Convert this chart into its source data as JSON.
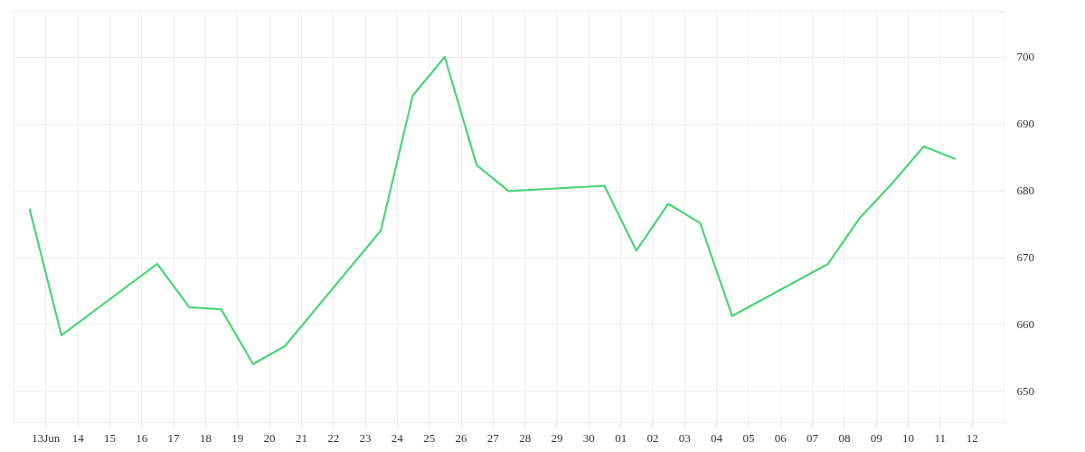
{
  "chart_data": {
    "type": "line",
    "x": [
      "--06-12T12:00",
      "--06-13T12:00",
      "--06-16T12:00",
      "--06-17T12:00",
      "--06-18T12:00",
      "--06-19T12:00",
      "--06-20T12:00",
      "--06-23T12:00",
      "--06-24T12:00",
      "--06-25T12:00",
      "--06-26T12:00",
      "--06-27T12:00",
      "--06-30T12:00",
      "--07-01T12:00",
      "--07-02T12:00",
      "--07-03T12:00",
      "--07-04T12:00",
      "--07-07T12:00",
      "--07-08T12:00",
      "--07-09T12:00",
      "--07-10T12:00",
      "--07-11T12:00"
    ],
    "series": [
      {
        "color": "#4cd47a",
        "values": [
          677.3,
          658.3,
          669,
          662.5,
          662.2,
          654,
          656.7,
          674,
          694.2,
          700,
          683.8,
          679.9,
          680.7,
          671,
          678,
          675.1,
          661.2,
          669,
          675.9,
          681,
          686.6,
          684.7
        ]
      }
    ],
    "xlim": [
      "--06-12",
      "--07-13"
    ],
    "xticks": [
      {
        "value": "--06-13",
        "label": "13Jun"
      },
      {
        "value": "--06-14",
        "label": "14"
      },
      {
        "value": "--06-15",
        "label": "15"
      },
      {
        "value": "--06-16",
        "label": "16"
      },
      {
        "value": "--06-17",
        "label": "17"
      },
      {
        "value": "--06-18",
        "label": "18"
      },
      {
        "value": "--06-19",
        "label": "19"
      },
      {
        "value": "--06-20",
        "label": "20"
      },
      {
        "value": "--06-21",
        "label": "21"
      },
      {
        "value": "--06-22",
        "label": "22"
      },
      {
        "value": "--06-23",
        "label": "23"
      },
      {
        "value": "--06-24",
        "label": "24"
      },
      {
        "value": "--06-25",
        "label": "25"
      },
      {
        "value": "--06-26",
        "label": "26"
      },
      {
        "value": "--06-27",
        "label": "27"
      },
      {
        "value": "--06-28",
        "label": "28"
      },
      {
        "value": "--06-29",
        "label": "29"
      },
      {
        "value": "--06-30",
        "label": "30"
      },
      {
        "value": "--07-01",
        "label": "01"
      },
      {
        "value": "--07-02",
        "label": "02"
      },
      {
        "value": "--07-03",
        "label": "03"
      },
      {
        "value": "--07-04",
        "label": "04"
      },
      {
        "value": "--07-05",
        "label": "05"
      },
      {
        "value": "--07-06",
        "label": "06"
      },
      {
        "value": "--07-07",
        "label": "07"
      },
      {
        "value": "--07-08",
        "label": "08"
      },
      {
        "value": "--07-09",
        "label": "09"
      },
      {
        "value": "--07-10",
        "label": "10"
      },
      {
        "value": "--07-11",
        "label": "11"
      },
      {
        "value": "--07-12",
        "label": "12"
      }
    ],
    "ylim": [
      645.3,
      706.9
    ],
    "yticks": [
      650,
      660,
      670,
      680,
      690,
      700
    ],
    "grid": true,
    "line_style": "solid",
    "marker": "none"
  }
}
